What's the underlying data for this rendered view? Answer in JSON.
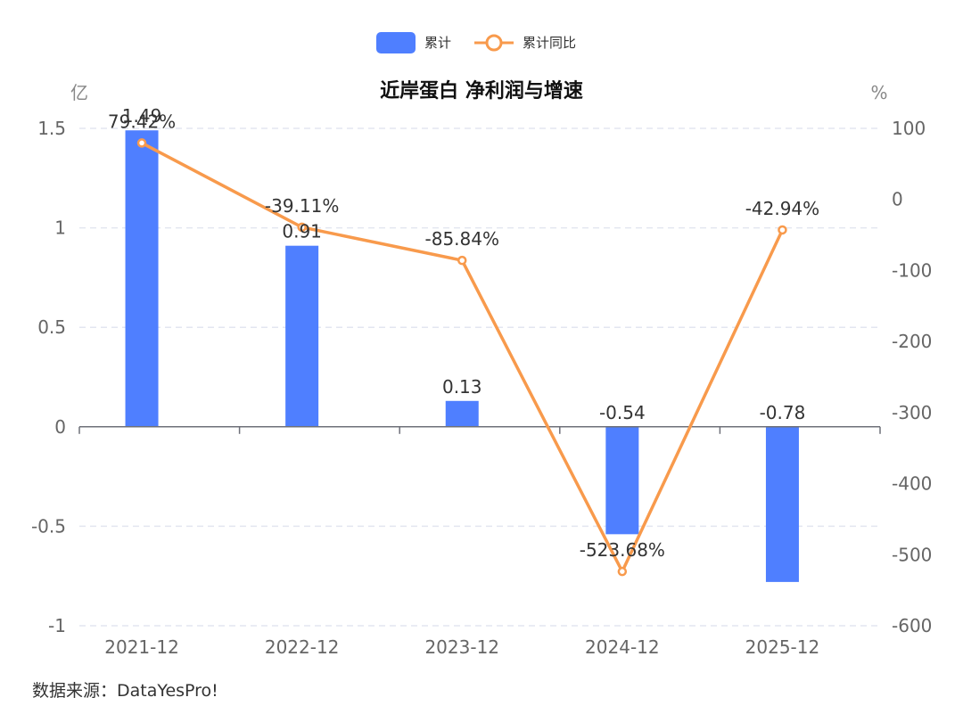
{
  "chart_data": {
    "type": "bar+line",
    "title": "近岸蛋白 净利润与增速",
    "categories": [
      "2021-12",
      "2022-12",
      "2023-12",
      "2024-12",
      "2025-12"
    ],
    "series": [
      {
        "name": "累计",
        "type": "bar",
        "axis": "left",
        "values": [
          1.49,
          0.91,
          0.13,
          -0.54,
          -0.78
        ],
        "labels": [
          "1.49",
          "0.91",
          "0.13",
          "-0.54",
          "-0.78"
        ],
        "color": "#4F7FFF"
      },
      {
        "name": "累计同比",
        "type": "line",
        "axis": "right",
        "values": [
          79.42,
          -39.11,
          -85.84,
          -523.68,
          -42.94
        ],
        "labels": [
          "79.42%",
          "-39.11%",
          "-85.84%",
          "-523.68%",
          "-42.94%"
        ],
        "color": "#F89A4C"
      }
    ],
    "y_left": {
      "unit": "亿",
      "range": [
        -1,
        1.5
      ],
      "ticks": [
        1.5,
        1,
        0.5,
        0,
        -0.5,
        -1
      ],
      "tick_labels": [
        "1.5",
        "1",
        "0.5",
        "0",
        "-0.5",
        "-1"
      ]
    },
    "y_right": {
      "unit": "%",
      "range": [
        -600,
        100
      ],
      "ticks": [
        100,
        0,
        -100,
        -200,
        -300,
        -400,
        -500,
        -600
      ],
      "tick_labels": [
        "100",
        "0",
        "-100",
        "-200",
        "-300",
        "-400",
        "-500",
        "-600"
      ]
    },
    "grid": true,
    "legend": "top-center"
  },
  "source": "数据来源：DataYesPro!"
}
